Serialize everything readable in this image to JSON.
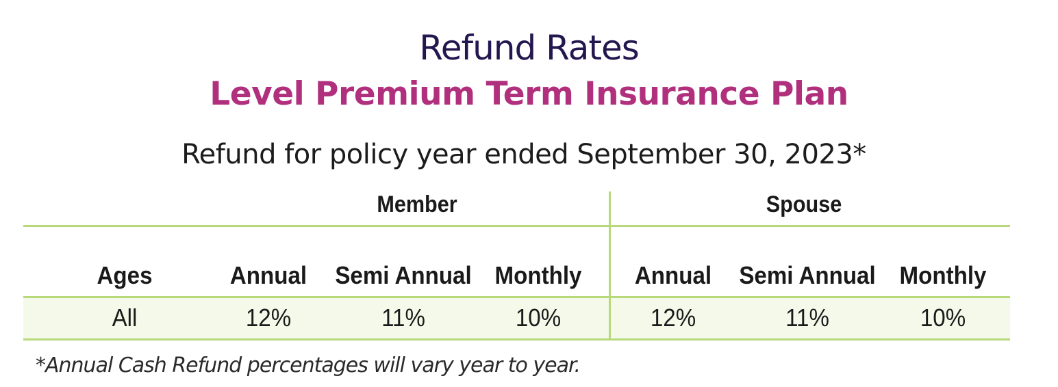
{
  "title": "Refund Rates",
  "subtitle": "Level Premium Term Insurance Plan",
  "caption": "Refund for policy year ended September 30, 2023*",
  "table": {
    "groups": [
      "Member",
      "Spouse"
    ],
    "headers": [
      "Ages",
      "Annual",
      "Semi Annual",
      "Monthly",
      "Annual",
      "Semi Annual",
      "Monthly"
    ],
    "rows": [
      [
        "All",
        "12%",
        "11%",
        "10%",
        "12%",
        "11%",
        "10%"
      ]
    ]
  },
  "footnote": "*Annual Cash Refund percentages will vary year to year.",
  "colors": {
    "title": "#24174f",
    "subtitle": "#b1307d",
    "rule": "#b7d97a",
    "row_background": "#f5f9ea"
  }
}
